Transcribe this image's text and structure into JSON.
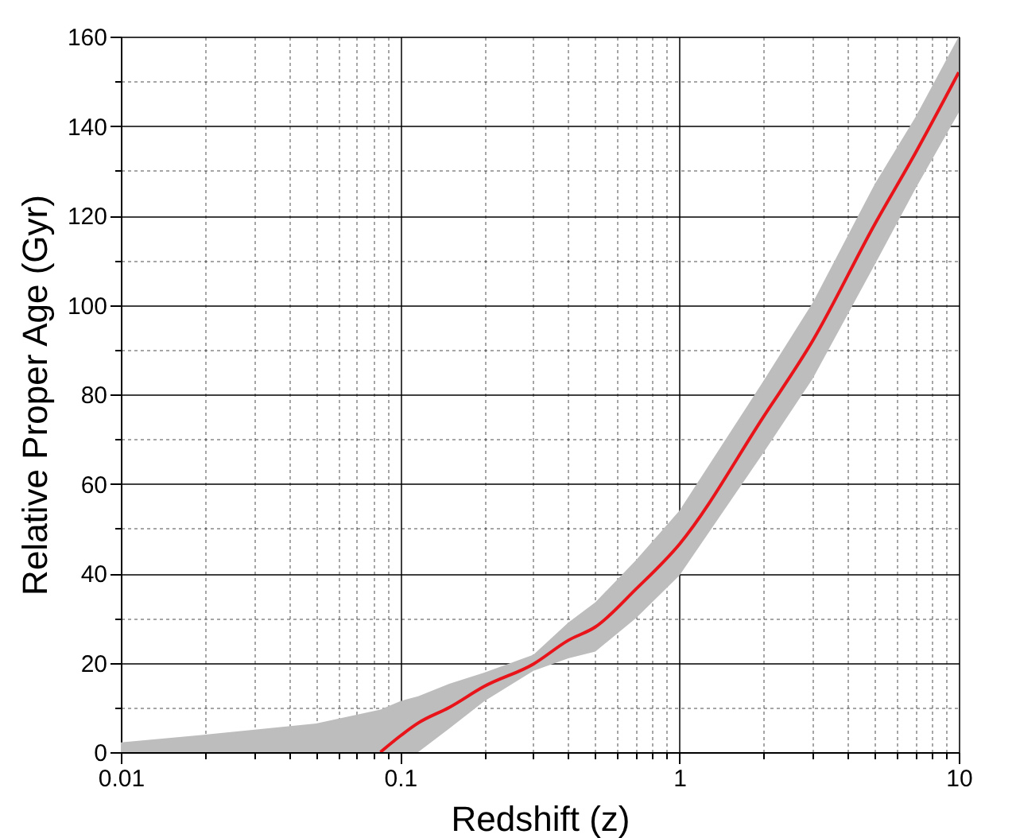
{
  "chart_data": {
    "type": "line",
    "xlabel": "Redshift (z)",
    "ylabel": "Relative Proper Age (Gyr)",
    "x": [
      0.01,
      0.02,
      0.05,
      0.085,
      0.1,
      0.116,
      0.15,
      0.2,
      0.3,
      0.4,
      0.5,
      0.7,
      1,
      2,
      3,
      5,
      7,
      10
    ],
    "series": [
      {
        "color": "#e8141a",
        "values": [
          null,
          null,
          null,
          0,
          3.6,
          6.5,
          10,
          14.7,
          19.7,
          25,
          28,
          36.5,
          46.5,
          75,
          92,
          118,
          134,
          152
        ],
        "lower": [
          0,
          0,
          0,
          0,
          0,
          0,
          5.3,
          11.4,
          18.2,
          21,
          22.5,
          30,
          39.5,
          67,
          83.5,
          109,
          126,
          143
        ],
        "upper": [
          2.2,
          3.9,
          6.4,
          9.5,
          11.4,
          12.5,
          15.3,
          17.8,
          21.8,
          29,
          33.5,
          43,
          54,
          83,
          100.5,
          127,
          142,
          160
        ]
      }
    ],
    "log": "x",
    "xlim": [
      0.01,
      10
    ],
    "xticks": [
      0.01,
      {
        "value": 0.02,
        "label": null
      },
      {
        "value": 0.03,
        "label": null
      },
      {
        "value": 0.04,
        "label": null
      },
      {
        "value": 0.05,
        "label": null
      },
      {
        "value": 0.06,
        "label": null
      },
      {
        "value": 0.07,
        "label": null
      },
      {
        "value": 0.08,
        "label": null
      },
      {
        "value": 0.09,
        "label": null
      },
      0.1,
      {
        "value": 0.2,
        "label": null
      },
      {
        "value": 0.3,
        "label": null
      },
      {
        "value": 0.4,
        "label": null
      },
      {
        "value": 0.5,
        "label": null
      },
      {
        "value": 0.6,
        "label": null
      },
      {
        "value": 0.7,
        "label": null
      },
      {
        "value": 0.8,
        "label": null
      },
      {
        "value": 0.9,
        "label": null
      },
      1,
      {
        "value": 2,
        "label": null
      },
      {
        "value": 3,
        "label": null
      },
      {
        "value": 4,
        "label": null
      },
      {
        "value": 5,
        "label": null
      },
      {
        "value": 6,
        "label": null
      },
      {
        "value": 7,
        "label": null
      },
      {
        "value": 8,
        "label": null
      },
      {
        "value": 9,
        "label": null
      },
      10
    ],
    "ylim": [
      0,
      160
    ],
    "yticks": [
      0,
      {
        "value": 10,
        "label": null
      },
      20,
      {
        "value": 30,
        "label": null
      },
      40,
      {
        "value": 50,
        "label": null
      },
      60,
      {
        "value": 70,
        "label": null
      },
      80,
      {
        "value": 90,
        "label": null
      },
      100,
      {
        "value": 110,
        "label": null
      },
      120,
      {
        "value": 130,
        "label": null
      },
      140,
      {
        "value": 150,
        "label": null
      },
      160
    ],
    "grid": true,
    "line_style": "solid",
    "marker": "none"
  }
}
